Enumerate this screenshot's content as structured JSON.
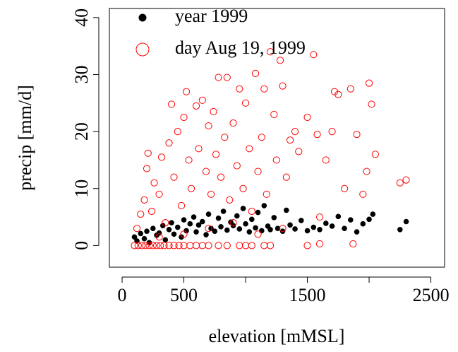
{
  "chart_data": {
    "type": "scatter",
    "x_label": "elevation  [mMSL]",
    "y_label": "precip  [mm/d]",
    "xlim": [
      -103,
      2611
    ],
    "ylim": [
      -3.8,
      41.6
    ],
    "xticks": [
      0,
      500,
      {
        "value": 1000,
        "label": null
      },
      1500,
      {
        "value": 2000,
        "label": null
      },
      2500
    ],
    "yticks": [
      0,
      10,
      20,
      30,
      40
    ],
    "legend": "topleft",
    "series": [
      {
        "name": "year 1999",
        "color": "#000000",
        "marker": "filled",
        "x": [
          100,
          120,
          150,
          180,
          200,
          220,
          250,
          280,
          300,
          330,
          350,
          380,
          400,
          420,
          450,
          480,
          500,
          520,
          550,
          580,
          600,
          620,
          650,
          680,
          700,
          720,
          750,
          780,
          800,
          820,
          850,
          880,
          900,
          930,
          950,
          980,
          1000,
          1030,
          1050,
          1080,
          1100,
          1130,
          1150,
          1180,
          1200,
          1230,
          1260,
          1300,
          1330,
          1360,
          1400,
          1450,
          1500,
          1550,
          1600,
          1650,
          1700,
          1750,
          1800,
          1850,
          1900,
          1950,
          2000,
          2030,
          2250,
          2300
        ],
        "values": [
          1.5,
          0.8,
          2.1,
          1.2,
          2.5,
          0.5,
          3.0,
          1.8,
          2.2,
          3.5,
          1.0,
          2.8,
          4.0,
          2.0,
          3.2,
          1.5,
          4.5,
          2.6,
          3.8,
          5.0,
          2.4,
          3.6,
          4.2,
          1.9,
          5.5,
          3.0,
          2.5,
          4.8,
          3.3,
          6.0,
          2.7,
          4.1,
          3.5,
          5.2,
          2.9,
          6.5,
          3.8,
          2.4,
          4.6,
          3.1,
          5.8,
          2.6,
          7.0,
          3.4,
          2.8,
          4.9,
          3.0,
          2.5,
          6.2,
          3.6,
          2.9,
          4.4,
          2.6,
          3.2,
          2.8,
          3.9,
          3.4,
          5.1,
          3.0,
          4.5,
          2.4,
          3.8,
          4.6,
          5.5,
          2.8,
          4.2
        ]
      },
      {
        "name": "day Aug 19, 1999",
        "color": "#ff0000",
        "marker": "open",
        "x": [
          100,
          130,
          160,
          190,
          220,
          250,
          280,
          310,
          340,
          380,
          420,
          460,
          500,
          550,
          600,
          650,
          700,
          780,
          850,
          950,
          1000,
          1050,
          1150,
          1200,
          1500,
          1600,
          1870,
          120,
          150,
          180,
          200,
          210,
          240,
          260,
          300,
          320,
          350,
          380,
          400,
          420,
          450,
          480,
          500,
          520,
          540,
          560,
          600,
          620,
          650,
          680,
          700,
          720,
          740,
          760,
          780,
          800,
          830,
          850,
          870,
          900,
          930,
          950,
          980,
          1000,
          1030,
          1050,
          1080,
          1100,
          1130,
          1150,
          1170,
          1200,
          1230,
          1250,
          1280,
          1300,
          1330,
          1360,
          1400,
          1430,
          1500,
          1550,
          1580,
          1650,
          1700,
          1720,
          1750,
          1800,
          1850,
          1900,
          1950,
          1980,
          2000,
          2020,
          2050,
          2250,
          2300,
          1600,
          1300,
          900,
          500,
          700,
          300,
          1100
        ],
        "values": [
          0,
          0,
          0,
          0,
          0,
          0,
          0,
          0,
          0,
          0,
          0,
          0,
          0,
          0,
          0,
          0,
          0,
          0,
          0,
          0,
          0,
          0,
          0,
          0,
          0,
          0.3,
          0.3,
          3,
          5.5,
          8,
          13.5,
          16.2,
          6,
          11,
          9,
          15.5,
          4,
          18,
          24.8,
          12,
          20,
          7,
          22.5,
          27,
          15,
          10,
          24.5,
          17,
          25.5,
          13,
          21,
          9,
          23.5,
          16,
          29.5,
          12,
          19,
          29.5,
          8,
          21.5,
          14,
          27.5,
          10,
          25,
          17,
          6,
          30.2,
          13,
          19,
          27.5,
          9,
          34,
          23,
          15,
          32.5,
          28,
          12,
          18.5,
          20,
          16.5,
          22.5,
          33.5,
          19.5,
          15,
          20,
          27,
          26.5,
          10,
          27.5,
          19.5,
          9,
          13,
          28.5,
          24.8,
          16,
          11,
          11.5,
          5,
          3,
          4,
          2,
          3,
          1.5,
          2
        ]
      }
    ]
  }
}
